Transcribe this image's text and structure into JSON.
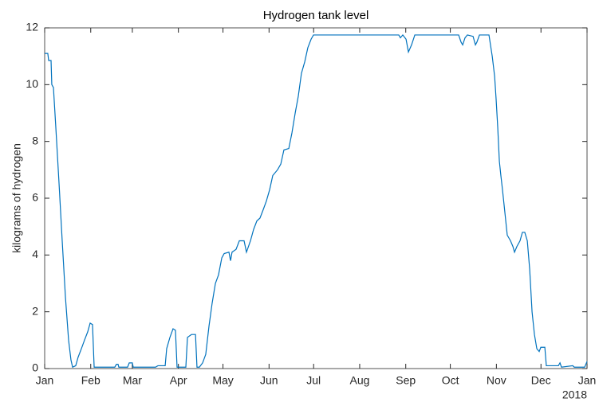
{
  "chart_data": {
    "type": "line",
    "title": "Hydrogen tank level",
    "ylabel": "kilograms of hydrogen",
    "year_label": "2018",
    "xlim": [
      0,
      365
    ],
    "ylim": [
      0,
      12
    ],
    "xticks": [
      {
        "value": 0,
        "label": "Jan"
      },
      {
        "value": 31,
        "label": "Feb"
      },
      {
        "value": 59,
        "label": "Mar"
      },
      {
        "value": 90,
        "label": "Apr"
      },
      {
        "value": 120,
        "label": "May"
      },
      {
        "value": 151,
        "label": "Jun"
      },
      {
        "value": 181,
        "label": "Jul"
      },
      {
        "value": 212,
        "label": "Aug"
      },
      {
        "value": 243,
        "label": "Sep"
      },
      {
        "value": 273,
        "label": "Oct"
      },
      {
        "value": 304,
        "label": "Nov"
      },
      {
        "value": 334,
        "label": "Dec"
      },
      {
        "value": 365,
        "label": "Jan"
      }
    ],
    "yticks": [
      0,
      2,
      4,
      6,
      8,
      10,
      12
    ],
    "grid": false,
    "series": [
      {
        "color": "#0072bd",
        "x": [
          0,
          2.1,
          2.7,
          4.3,
          4.8,
          5.9,
          7.5,
          9.7,
          11.8,
          14.0,
          16.1,
          17.7,
          18.8,
          20.9,
          22.5,
          24.7,
          26.8,
          29.0,
          30.6,
          32.2,
          33.3,
          47.2,
          48.3,
          49.4,
          49.9,
          55.8,
          56.9,
          59.0,
          59.6,
          74.6,
          76.2,
          81.1,
          82.1,
          84.3,
          86.4,
          88.0,
          89.1,
          95.0,
          96.1,
          98.8,
          101.5,
          102.5,
          104.1,
          106.3,
          108.4,
          110.6,
          112.7,
          114.9,
          117.0,
          119.2,
          120.8,
          124.0,
          125.1,
          126.1,
          128.8,
          131.0,
          134.2,
          135.8,
          138.5,
          140.6,
          142.8,
          144.9,
          147.1,
          149.2,
          151.4,
          153.5,
          156.7,
          158.9,
          161.0,
          164.3,
          166.4,
          168.6,
          170.7,
          172.8,
          175.0,
          177.1,
          179.3,
          180.9,
          238.3,
          239.4,
          241.0,
          243.2,
          244.8,
          246.9,
          249.1,
          278.6,
          280.2,
          281.3,
          282.9,
          284.5,
          288.3,
          289.9,
          290.9,
          292.6,
          299.0,
          301.2,
          302.8,
          303.8,
          304.9,
          306.0,
          307.0,
          308.1,
          309.7,
          311.3,
          313.5,
          315.1,
          316.2,
          317.8,
          319.9,
          321.5,
          323.1,
          324.8,
          326.4,
          328.0,
          329.6,
          331.2,
          332.8,
          333.9,
          336.6,
          337.6,
          345.7,
          346.8,
          347.8,
          355.4,
          356.4,
          363.4,
          365
        ],
        "values": [
          11.1,
          11.1,
          10.85,
          10.85,
          10.0,
          9.9,
          8.5,
          6.5,
          4.5,
          2.5,
          1.0,
          0.3,
          0.05,
          0.1,
          0.4,
          0.7,
          1.0,
          1.3,
          1.6,
          1.55,
          0.05,
          0.05,
          0.15,
          0.15,
          0.05,
          0.05,
          0.2,
          0.2,
          0.05,
          0.05,
          0.1,
          0.1,
          0.7,
          1.1,
          1.4,
          1.35,
          0.05,
          0.05,
          1.1,
          1.2,
          1.2,
          0.05,
          0.05,
          0.2,
          0.5,
          1.5,
          2.3,
          3.0,
          3.3,
          3.9,
          4.05,
          4.1,
          3.8,
          4.1,
          4.2,
          4.5,
          4.5,
          4.1,
          4.5,
          4.9,
          5.2,
          5.3,
          5.6,
          5.9,
          6.3,
          6.8,
          7.0,
          7.2,
          7.7,
          7.75,
          8.3,
          9.0,
          9.6,
          10.4,
          10.8,
          11.3,
          11.6,
          11.75,
          11.75,
          11.65,
          11.75,
          11.6,
          11.15,
          11.4,
          11.75,
          11.75,
          11.5,
          11.4,
          11.65,
          11.75,
          11.7,
          11.4,
          11.5,
          11.75,
          11.75,
          11.0,
          10.3,
          9.5,
          8.5,
          7.3,
          6.8,
          6.3,
          5.5,
          4.7,
          4.5,
          4.3,
          4.1,
          4.3,
          4.5,
          4.8,
          4.8,
          4.5,
          3.5,
          2.0,
          1.2,
          0.7,
          0.6,
          0.75,
          0.75,
          0.1,
          0.1,
          0.2,
          0.05,
          0.1,
          0.05,
          0.05,
          0.25
        ]
      }
    ]
  }
}
